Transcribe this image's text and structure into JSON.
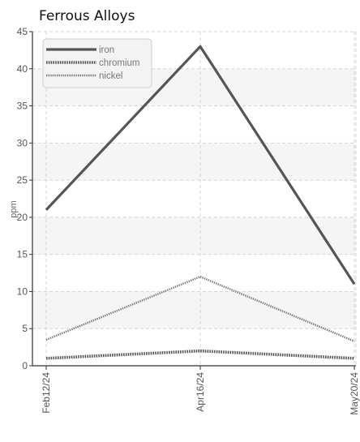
{
  "chart_data": {
    "type": "line",
    "title": "Ferrous Alloys",
    "xlabel": "",
    "ylabel": "ppm",
    "categories": [
      "Feb12/24",
      "Apr16/24",
      "May20/24"
    ],
    "ylim": [
      0,
      45
    ],
    "yticks": [
      0,
      5,
      10,
      15,
      20,
      25,
      30,
      35,
      40,
      45
    ],
    "grid": true,
    "legend_position": "top-left",
    "series": [
      {
        "name": "iron",
        "values": [
          21,
          43,
          11
        ],
        "color": "#555555",
        "style": "solid"
      },
      {
        "name": "chromium",
        "values": [
          1,
          2,
          1
        ],
        "color": "#555555",
        "style": "dotted-heavy"
      },
      {
        "name": "nickel",
        "values": [
          3.5,
          12,
          3.3
        ],
        "color": "#777777",
        "style": "dotted-light"
      }
    ]
  }
}
